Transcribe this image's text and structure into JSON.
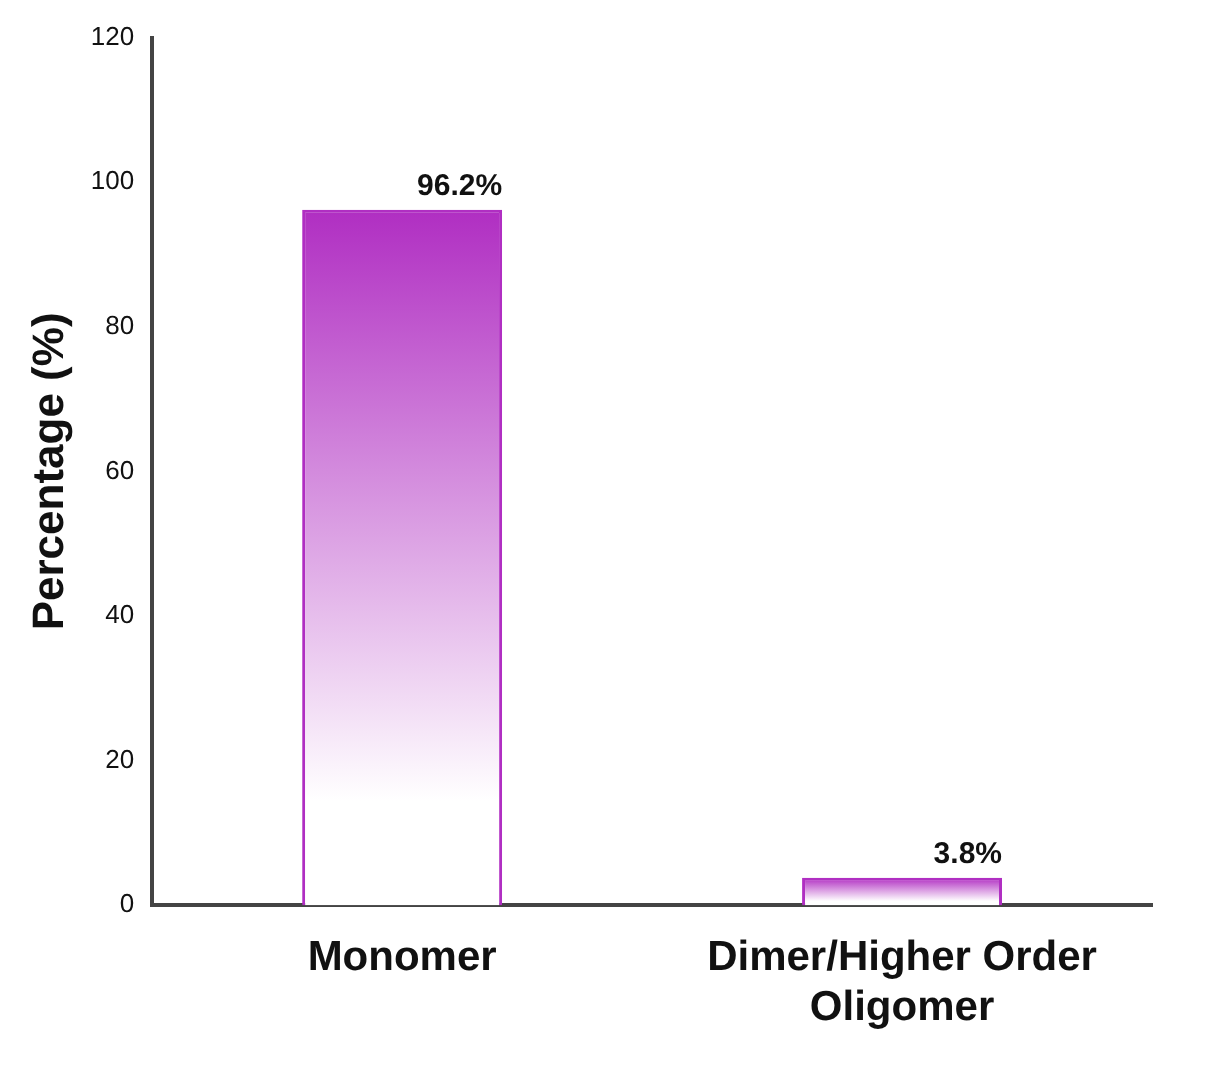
{
  "chart_data": {
    "type": "bar",
    "ylabel": "Percentage (%)",
    "categories": [
      "Monomer",
      "Dimer/Higher Order Oligomer"
    ],
    "values": [
      96.2,
      3.8
    ],
    "value_labels": [
      "96.2%",
      "3.8%"
    ],
    "color": "#b02ec2",
    "ylim": [
      0,
      120
    ],
    "yticks": [
      0,
      20,
      40,
      60,
      80,
      100,
      120
    ],
    "grid": false,
    "legend": false
  }
}
